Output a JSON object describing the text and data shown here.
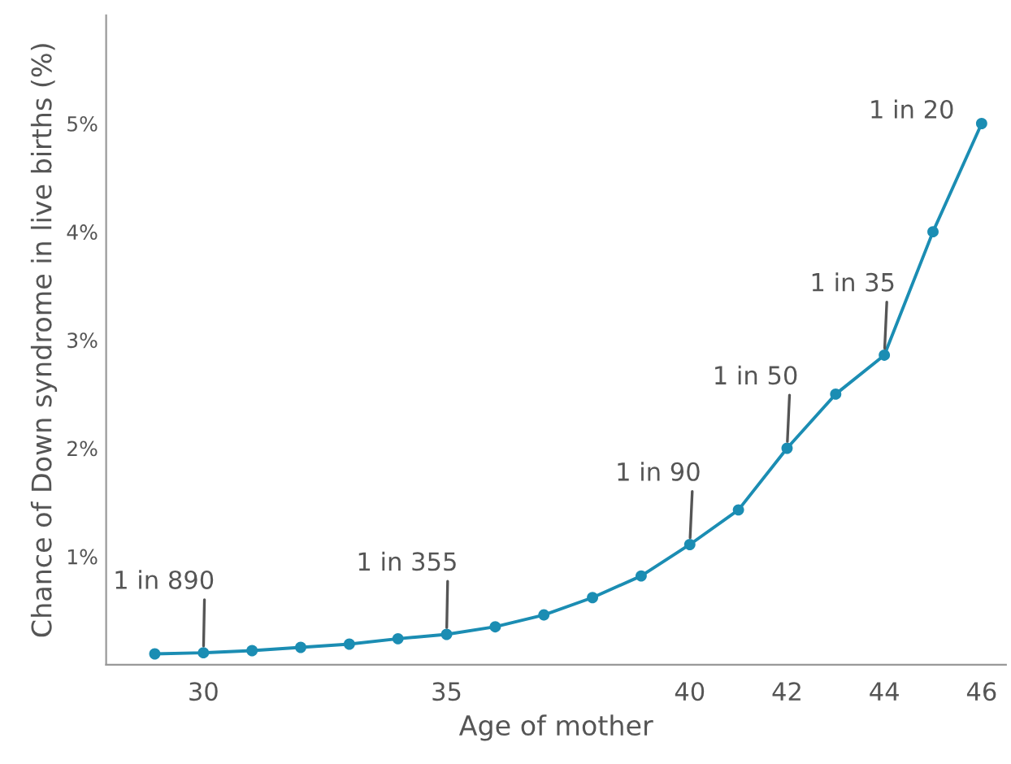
{
  "chart_data": {
    "type": "line",
    "xlabel": "Age of mother",
    "ylabel": "Chance of Down syndrome in live births (%)",
    "x": [
      29,
      30,
      31,
      32,
      33,
      34,
      35,
      36,
      37,
      38,
      39,
      40,
      41,
      42,
      43,
      44,
      45,
      46
    ],
    "series": [
      {
        "color": "#1b8db3",
        "values": [
          0.1,
          0.11,
          0.13,
          0.16,
          0.19,
          0.24,
          0.28,
          0.35,
          0.46,
          0.62,
          0.82,
          1.11,
          1.43,
          2.0,
          2.5,
          2.86,
          4.0,
          5.0
        ]
      }
    ],
    "xlim": [
      28,
      46.5
    ],
    "xticks": [
      30,
      35,
      40,
      42,
      44,
      46
    ],
    "ylim": [
      0,
      6
    ],
    "yticks": [
      {
        "value": 1,
        "label": "1%"
      },
      {
        "value": 2,
        "label": "2%"
      },
      {
        "value": 3,
        "label": "3%"
      },
      {
        "value": 4,
        "label": "4%"
      },
      {
        "value": 5,
        "label": "5%"
      }
    ],
    "marker": "circle",
    "line_style": "solid",
    "grid": false,
    "annotations": [
      {
        "text": "1 in 890",
        "x": 30,
        "y": 0.11
      },
      {
        "text": "1 in 355",
        "x": 35,
        "y": 0.28
      },
      {
        "text": "1 in 90",
        "x": 40,
        "y": 1.11
      },
      {
        "text": "1 in 50",
        "x": 42,
        "y": 2.0
      },
      {
        "text": "1 in 35",
        "x": 44,
        "y": 2.86
      },
      {
        "text": "1 in 20",
        "x": 46,
        "y": 5.0
      }
    ]
  }
}
